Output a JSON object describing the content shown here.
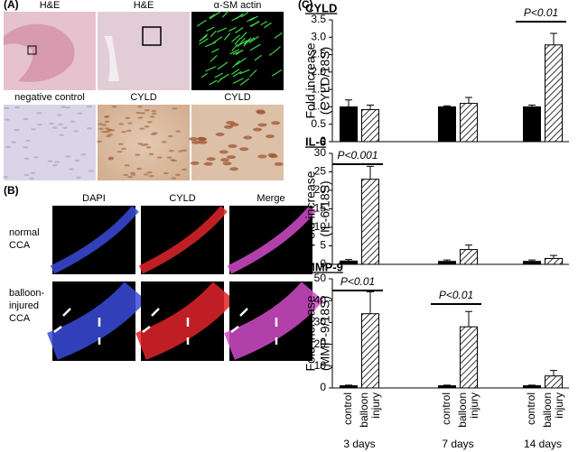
{
  "panel_a": {
    "label": "(A)",
    "titles": [
      "H&E",
      "H&E",
      "α-SM actin",
      "negative control",
      "CYLD",
      "CYLD"
    ]
  },
  "panel_b": {
    "label": "(B)",
    "columns": [
      "DAPI",
      "CYLD",
      "Merge"
    ],
    "rows": [
      [
        "normal",
        "CCA"
      ],
      [
        "balloon-",
        "injured",
        "CCA"
      ]
    ]
  },
  "panel_c": {
    "label": "(C)"
  },
  "chart_data": [
    {
      "type": "bar",
      "title": "CYLD",
      "ylabel": [
        "Fold increase",
        "(CYLD/18S)"
      ],
      "ylim": [
        0,
        3.5
      ],
      "yticks": [
        0,
        0.5,
        {
          "value": 1,
          "label": "1.0"
        },
        1.5,
        {
          "value": 2,
          "label": "2.0"
        },
        2.5,
        {
          "value": 3,
          "label": "3.0"
        },
        3.5
      ],
      "series": [
        {
          "color": "#000000",
          "values": [
            1.0,
            1.0,
            1.0
          ],
          "errors": [
            0.2,
            0.03,
            0.05
          ]
        },
        {
          "color": "#ffffff",
          "pattern": "hatch",
          "values": [
            0.92,
            1.1,
            2.78
          ],
          "errors": [
            0.13,
            0.17,
            0.33
          ]
        }
      ],
      "annotations": [
        "P<0.01"
      ]
    },
    {
      "type": "bar",
      "title": "IL-6",
      "ylabel": [
        "Fold increase",
        "(IL-6/18S)"
      ],
      "ylim": [
        0,
        30
      ],
      "yticks": [
        0,
        5,
        10,
        15,
        20,
        25,
        30
      ],
      "series": [
        {
          "color": "#000000",
          "values": [
            0.9,
            0.8,
            0.8
          ],
          "errors": [
            0.4,
            0.4,
            0.4
          ]
        },
        {
          "color": "#ffffff",
          "pattern": "hatch",
          "values": [
            23,
            4,
            1.6
          ],
          "errors": [
            3.5,
            1.2,
            0.8
          ]
        }
      ],
      "annotations": [
        "P<0.001"
      ]
    },
    {
      "type": "bar",
      "title": "MMP-9",
      "ylabel": [
        "Fold increase",
        "(MMP-9/18S)"
      ],
      "ylim": [
        0,
        50
      ],
      "yticks": [
        0,
        10,
        20,
        30,
        40,
        50
      ],
      "categories": [
        "3 days",
        "7 days",
        "14 days"
      ],
      "series": [
        {
          "name": "control",
          "color": "#000000",
          "values": [
            1,
            1,
            1
          ],
          "errors": [
            0.3,
            0.3,
            0.3
          ]
        },
        {
          "name": "balloon injury",
          "color": "#ffffff",
          "pattern": "hatch",
          "values": [
            34,
            28,
            5.5
          ],
          "errors": [
            10,
            7,
            2.5
          ]
        }
      ],
      "annotations": [
        "P<0.01",
        "P<0.01"
      ]
    }
  ]
}
